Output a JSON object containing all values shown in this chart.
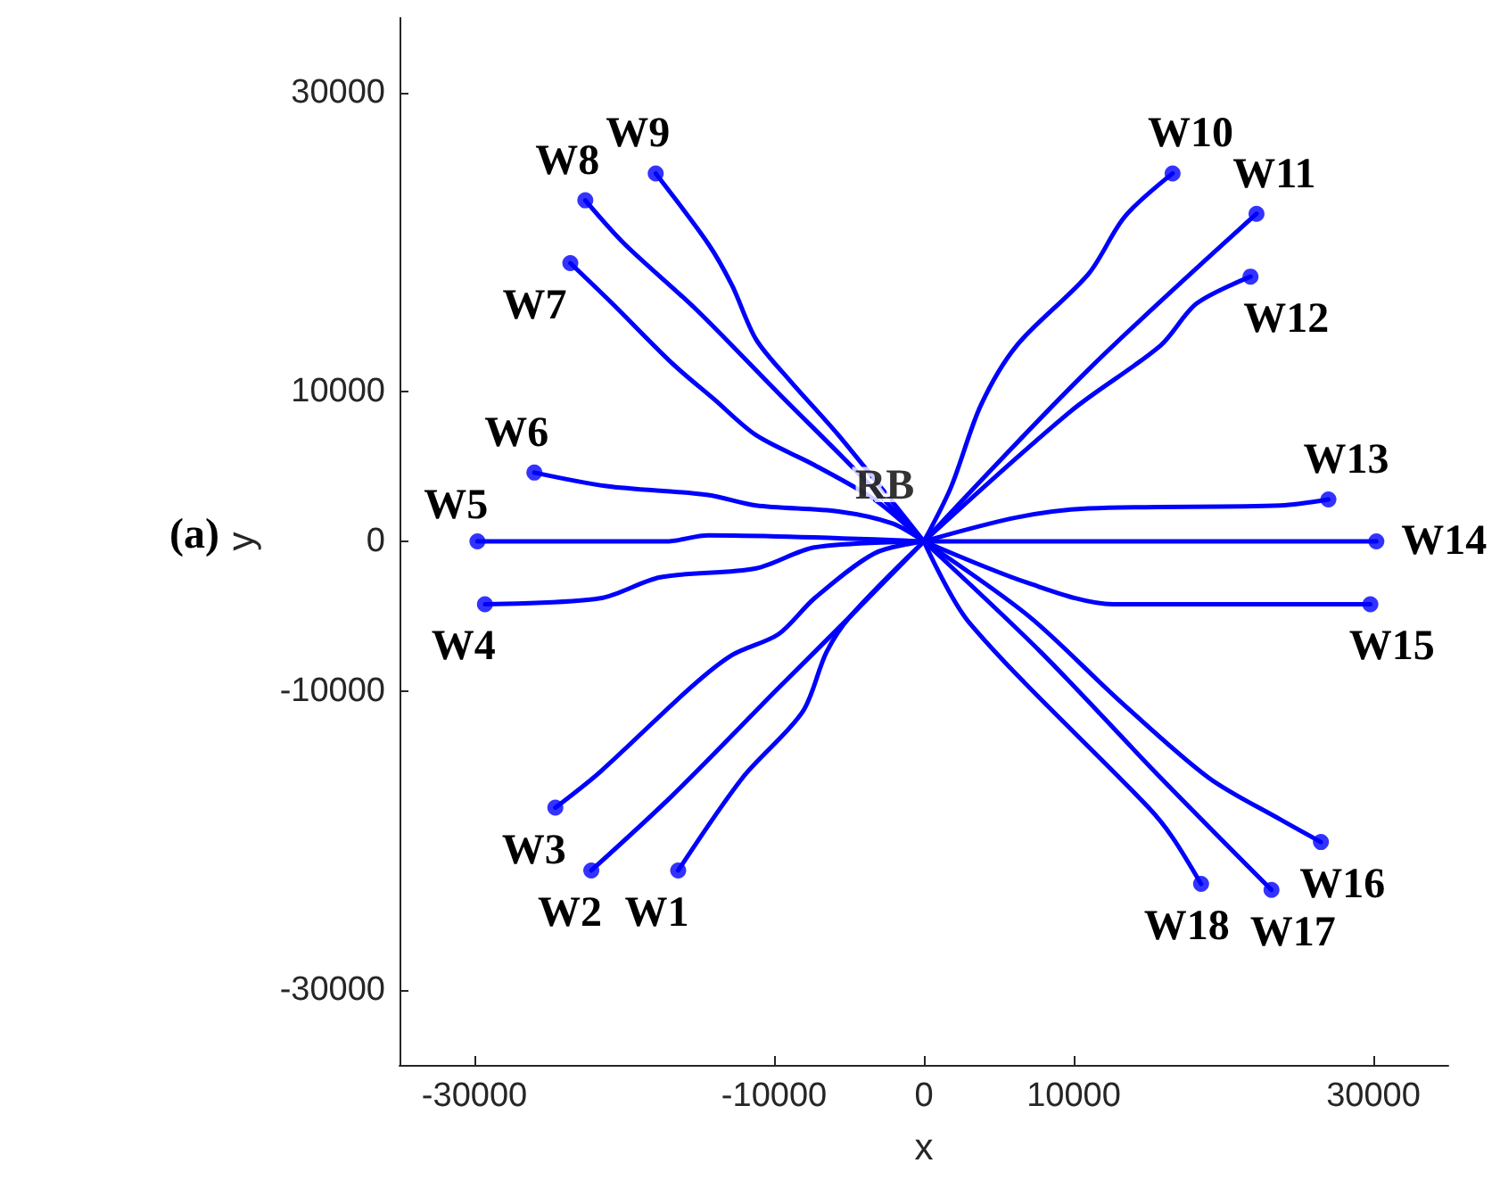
{
  "chart_data": {
    "type": "line",
    "xlabel": "x",
    "ylabel": "y",
    "annotations": [
      {
        "text": "RB",
        "x": 0,
        "y": 0
      },
      "(a)"
    ],
    "xlim": [
      -35000,
      35000
    ],
    "ylim": [
      -35000,
      35000
    ],
    "xticks": [
      -30000,
      -10000,
      0,
      10000,
      30000
    ],
    "yticks": [
      -30000,
      -10000,
      0,
      10000,
      30000
    ],
    "grid": false,
    "legend": false,
    "marker": "none",
    "line_style": "solid",
    "series": [
      {
        "name": "W1",
        "color": "#0000ff",
        "x": [
          -16400,
          -12100,
          -8100,
          -6500,
          -4900,
          0
        ],
        "values": [
          -22000,
          -15800,
          -11400,
          -7400,
          -5000,
          0
        ]
      },
      {
        "name": "W2",
        "color": "#0000ff",
        "x": [
          -22200,
          -16800,
          -9700,
          -4900,
          0
        ],
        "values": [
          -22000,
          -17000,
          -9800,
          -5000,
          0
        ]
      },
      {
        "name": "W3",
        "color": "#0000ff",
        "x": [
          -24600,
          -21600,
          -15600,
          -12800,
          -9700,
          -7300,
          -3300,
          0
        ],
        "values": [
          -17800,
          -15400,
          -9800,
          -7600,
          -6200,
          -3800,
          -800,
          0
        ]
      },
      {
        "name": "W4",
        "color": "#0000ff",
        "x": [
          -29300,
          -21600,
          -17600,
          -11200,
          -7300,
          0
        ],
        "values": [
          -4200,
          -3800,
          -2400,
          -1800,
          -400,
          0
        ]
      },
      {
        "name": "W5",
        "color": "#0000ff",
        "x": [
          -29800,
          -17200,
          -14400,
          0
        ],
        "values": [
          0,
          0,
          400,
          0
        ]
      },
      {
        "name": "W6",
        "color": "#0000ff",
        "x": [
          -26000,
          -21200,
          -14400,
          -11200,
          -5700,
          -2100,
          0
        ],
        "values": [
          4600,
          3700,
          3100,
          2400,
          2000,
          1200,
          0
        ]
      },
      {
        "name": "W7",
        "color": "#0000ff",
        "x": [
          -23600,
          -20800,
          -16800,
          -14000,
          -11200,
          -7300,
          -3300,
          0
        ],
        "values": [
          18600,
          15900,
          11900,
          9500,
          7100,
          5100,
          2800,
          0
        ]
      },
      {
        "name": "W8",
        "color": "#0000ff",
        "x": [
          -22600,
          -20000,
          -15200,
          -9700,
          -4900,
          0
        ],
        "values": [
          22800,
          19900,
          15500,
          9900,
          5100,
          0
        ]
      },
      {
        "name": "W9",
        "color": "#0000ff",
        "x": [
          -17900,
          -14400,
          -12800,
          -11200,
          -8900,
          -5700,
          0
        ],
        "values": [
          24600,
          19900,
          17100,
          13500,
          10700,
          7100,
          0
        ]
      },
      {
        "name": "W10",
        "color": "#0000ff",
        "x": [
          16600,
          13400,
          11000,
          6200,
          3800,
          1800,
          0
        ],
        "values": [
          24600,
          21700,
          17900,
          13100,
          9100,
          3600,
          0
        ]
      },
      {
        "name": "W11",
        "color": "#0000ff",
        "x": [
          22200,
          11000,
          0
        ],
        "values": [
          21900,
          11500,
          0
        ]
      },
      {
        "name": "W12",
        "color": "#0000ff",
        "x": [
          21800,
          18200,
          15800,
          9800,
          0
        ],
        "values": [
          17700,
          15900,
          13100,
          8700,
          0
        ]
      },
      {
        "name": "W13",
        "color": "#0000ff",
        "x": [
          27000,
          23800,
          11000,
          6200,
          0
        ],
        "values": [
          2800,
          2400,
          2200,
          1600,
          0
        ]
      },
      {
        "name": "W14",
        "color": "#0000ff",
        "x": [
          30200,
          0
        ],
        "values": [
          0,
          0
        ]
      },
      {
        "name": "W15",
        "color": "#0000ff",
        "x": [
          29800,
          12600,
          7000,
          0
        ],
        "values": [
          -4200,
          -4200,
          -2800,
          0
        ]
      },
      {
        "name": "W16",
        "color": "#0000ff",
        "x": [
          26500,
          23800,
          19000,
          13000,
          7000,
          0
        ],
        "values": [
          -20100,
          -18600,
          -15800,
          -10600,
          -5000,
          0
        ]
      },
      {
        "name": "W17",
        "color": "#0000ff",
        "x": [
          23200,
          15800,
          7800,
          0
        ],
        "values": [
          -23300,
          -15800,
          -7400,
          0
        ]
      },
      {
        "name": "W18",
        "color": "#0000ff",
        "x": [
          18500,
          16600,
          15000,
          3000,
          0
        ],
        "values": [
          -22900,
          -19800,
          -17800,
          -5400,
          0
        ]
      },
      {
        "type": "scatter",
        "marker": "circle",
        "color": "#0000ff",
        "x": [
          -16400,
          -22200,
          -24600,
          -29300,
          -29800,
          -26000,
          -23600,
          -22600,
          -17900,
          16600,
          22200,
          21800,
          27000,
          30200,
          29800,
          26500,
          23200,
          18500
        ],
        "values": [
          -22000,
          -22000,
          -17800,
          -4200,
          0,
          4600,
          18600,
          22800,
          24600,
          24600,
          21900,
          17700,
          2800,
          0,
          -4200,
          -20100,
          -23300,
          -22900
        ]
      }
    ]
  }
}
